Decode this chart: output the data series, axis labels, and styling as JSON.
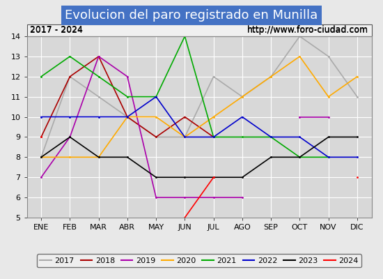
{
  "title": "Evolucion del paro registrado en Munilla",
  "subtitle_left": "2017 - 2024",
  "subtitle_right": "http://www.foro-ciudad.com",
  "months": [
    "ENE",
    "FEB",
    "MAR",
    "ABR",
    "MAY",
    "JUN",
    "JUL",
    "AGO",
    "SEP",
    "OCT",
    "NOV",
    "DIC"
  ],
  "ylim": [
    5.0,
    14.0
  ],
  "yticks": [
    5.0,
    6.0,
    7.0,
    8.0,
    9.0,
    10.0,
    11.0,
    12.0,
    13.0,
    14.0
  ],
  "series": {
    "2017": {
      "color": "#aaaaaa",
      "data": [
        8.0,
        12.0,
        11.0,
        10.0,
        9.0,
        9.0,
        12.0,
        11.0,
        12.0,
        14.0,
        13.0,
        11.0
      ]
    },
    "2018": {
      "color": "#aa0000",
      "data": [
        9.0,
        12.0,
        13.0,
        10.0,
        9.0,
        10.0,
        9.0,
        null,
        null,
        null,
        null,
        null
      ]
    },
    "2019": {
      "color": "#aa00aa",
      "data": [
        7.0,
        9.0,
        13.0,
        12.0,
        6.0,
        6.0,
        6.0,
        6.0,
        null,
        10.0,
        10.0,
        null
      ]
    },
    "2020": {
      "color": "#ffaa00",
      "data": [
        8.0,
        8.0,
        8.0,
        10.0,
        10.0,
        9.0,
        10.0,
        11.0,
        12.0,
        13.0,
        11.0,
        12.0
      ]
    },
    "2021": {
      "color": "#00aa00",
      "data": [
        12.0,
        13.0,
        12.0,
        11.0,
        11.0,
        14.0,
        9.0,
        9.0,
        9.0,
        8.0,
        8.0,
        null
      ]
    },
    "2022": {
      "color": "#0000cc",
      "data": [
        10.0,
        10.0,
        10.0,
        10.0,
        11.0,
        9.0,
        9.0,
        10.0,
        9.0,
        9.0,
        8.0,
        8.0
      ]
    },
    "2023": {
      "color": "#000000",
      "data": [
        8.0,
        9.0,
        8.0,
        8.0,
        7.0,
        7.0,
        7.0,
        7.0,
        8.0,
        8.0,
        9.0,
        9.0
      ]
    },
    "2024": {
      "color": "#ff0000",
      "data": [
        9.0,
        null,
        null,
        null,
        null,
        5.0,
        7.0,
        null,
        null,
        null,
        null,
        7.0
      ]
    }
  },
  "title_bg": "#4472c4",
  "title_color": "#ffffff",
  "title_fontsize": 13,
  "subtitle_fontsize": 9,
  "legend_fontsize": 8,
  "axis_bg": "#e8e8e8",
  "plot_bg": "#d8d8d8",
  "grid_color": "#ffffff",
  "tick_fontsize": 8
}
